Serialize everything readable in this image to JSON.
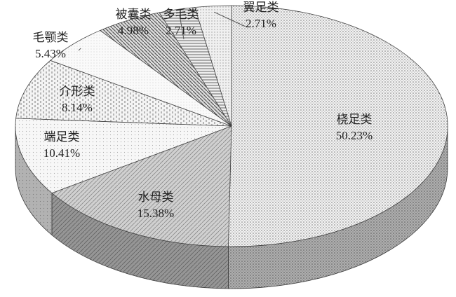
{
  "chart_data": {
    "type": "pie3d",
    "categories": [
      "桡足类",
      "水母类",
      "端足类",
      "介形类",
      "毛颚类",
      "被囊类",
      "多毛类",
      "翼足类"
    ],
    "values": [
      50.23,
      15.38,
      10.41,
      8.14,
      5.43,
      4.98,
      2.71,
      2.71
    ],
    "value_labels": [
      "50.23%",
      "15.38%",
      "10.41%",
      "8.14%",
      "5.43%",
      "4.98%",
      "2.71%",
      "2.71%"
    ]
  }
}
